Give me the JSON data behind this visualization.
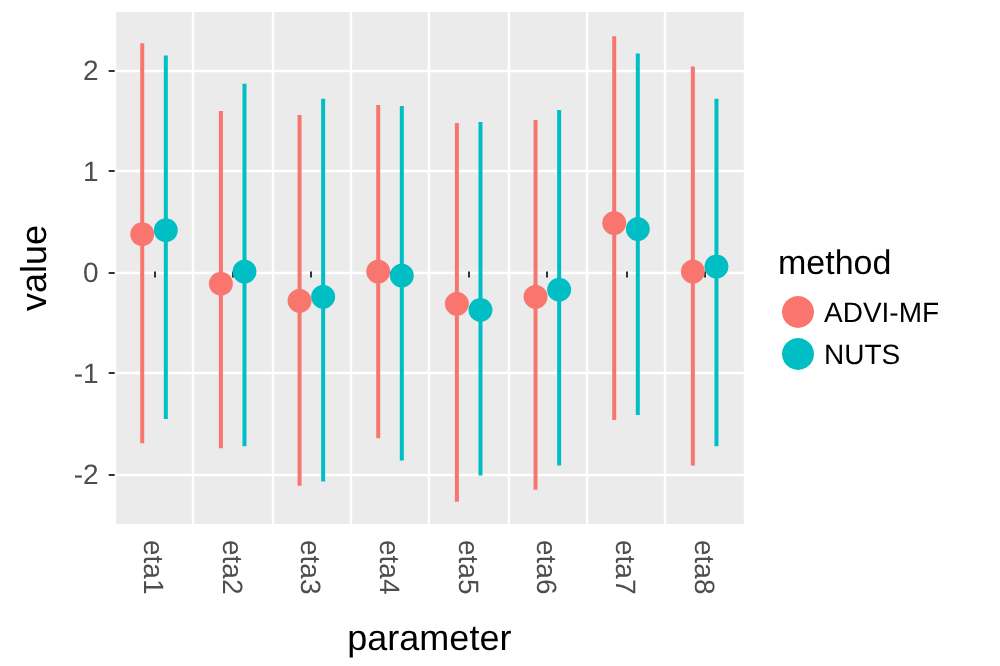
{
  "chart_data": {
    "type": "scatter",
    "xlabel": "parameter",
    "ylabel": "value",
    "legend_title": "method",
    "categories": [
      "eta1",
      "eta2",
      "eta3",
      "eta4",
      "eta5",
      "eta6",
      "eta7",
      "eta8"
    ],
    "series": [
      {
        "name": "ADVI-MF",
        "color": "#f8766d",
        "values": [
          0.37,
          -0.12,
          -0.29,
          0,
          -0.32,
          -0.25,
          0.48,
          0
        ],
        "errors": [
          [
            -1.7,
            2.26
          ],
          [
            -1.75,
            1.59
          ],
          [
            -2.12,
            1.55
          ],
          [
            -1.65,
            1.65
          ],
          [
            -2.28,
            1.47
          ],
          [
            -2.16,
            1.5
          ],
          [
            -1.47,
            2.33
          ],
          [
            -1.92,
            2.03
          ]
        ]
      },
      {
        "name": "NUTS",
        "color": "#00bfc4",
        "values": [
          0.41,
          0,
          -0.25,
          -0.04,
          -0.38,
          -0.18,
          0.42,
          0.05
        ],
        "errors": [
          [
            -1.46,
            2.14
          ],
          [
            -1.73,
            1.86
          ],
          [
            -2.08,
            1.71
          ],
          [
            -1.87,
            1.64
          ],
          [
            -2.02,
            1.48
          ],
          [
            -1.92,
            1.6
          ],
          [
            -1.42,
            2.16
          ],
          [
            -1.73,
            1.71
          ]
        ]
      }
    ],
    "ylim": [
      -2.5,
      2.57
    ],
    "yticks": [
      -2,
      -1,
      0,
      1,
      2
    ],
    "grid": true,
    "legend": "right",
    "marker": "circle"
  }
}
